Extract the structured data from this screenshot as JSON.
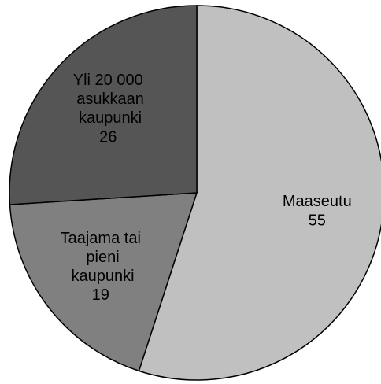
{
  "chart_data": {
    "type": "pie",
    "categories": [
      "Maaseutu",
      "Taajama tai pieni kaupunki",
      "Yli 20 000 asukkaan kaupunki"
    ],
    "values": [
      55,
      19,
      26
    ],
    "colors": [
      "#c0c0c0",
      "#808080",
      "#555555"
    ]
  }
}
